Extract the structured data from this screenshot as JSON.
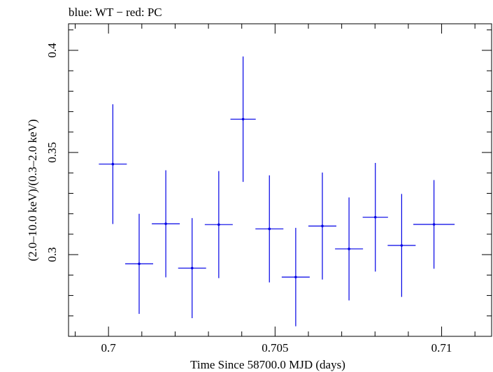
{
  "chart_data": {
    "type": "scatter",
    "title": "blue: WT − red: PC",
    "xlabel": "Time Since 58700.0 MJD (days)",
    "ylabel": "(2.0–10.0 keV)/(0.3–2.0 keV)",
    "xlim": [
      0.6988,
      0.7115
    ],
    "ylim": [
      0.26,
      0.413
    ],
    "x_ticks": [
      "0.7",
      "0.705",
      "0.71"
    ],
    "y_ticks": [
      "0.3",
      "0.35",
      "0.4"
    ],
    "grid": false,
    "series": [
      {
        "name": "WT",
        "color": "#0000e6",
        "points": [
          {
            "x": 0.70013,
            "xerr": 0.00042,
            "y": 0.3443,
            "yerr": 0.0293
          },
          {
            "x": 0.70092,
            "xerr": 0.00042,
            "y": 0.2955,
            "yerr": 0.0245
          },
          {
            "x": 0.70172,
            "xerr": 0.00042,
            "y": 0.3151,
            "yerr": 0.0262
          },
          {
            "x": 0.70251,
            "xerr": 0.00042,
            "y": 0.2934,
            "yerr": 0.0245
          },
          {
            "x": 0.70331,
            "xerr": 0.00042,
            "y": 0.3147,
            "yerr": 0.0262
          },
          {
            "x": 0.70404,
            "xerr": 0.00038,
            "y": 0.3663,
            "yerr": 0.0307
          },
          {
            "x": 0.70483,
            "xerr": 0.00042,
            "y": 0.3126,
            "yerr": 0.0262
          },
          {
            "x": 0.70562,
            "xerr": 0.00042,
            "y": 0.289,
            "yerr": 0.0241
          },
          {
            "x": 0.70642,
            "xerr": 0.00042,
            "y": 0.314,
            "yerr": 0.0262
          },
          {
            "x": 0.70722,
            "xerr": 0.00042,
            "y": 0.3028,
            "yerr": 0.0252
          },
          {
            "x": 0.70801,
            "xerr": 0.00038,
            "y": 0.3183,
            "yerr": 0.0266
          },
          {
            "x": 0.7088,
            "xerr": 0.00042,
            "y": 0.3045,
            "yerr": 0.0252
          },
          {
            "x": 0.70977,
            "xerr": 0.00062,
            "y": 0.3148,
            "yerr": 0.0217
          }
        ]
      }
    ]
  }
}
